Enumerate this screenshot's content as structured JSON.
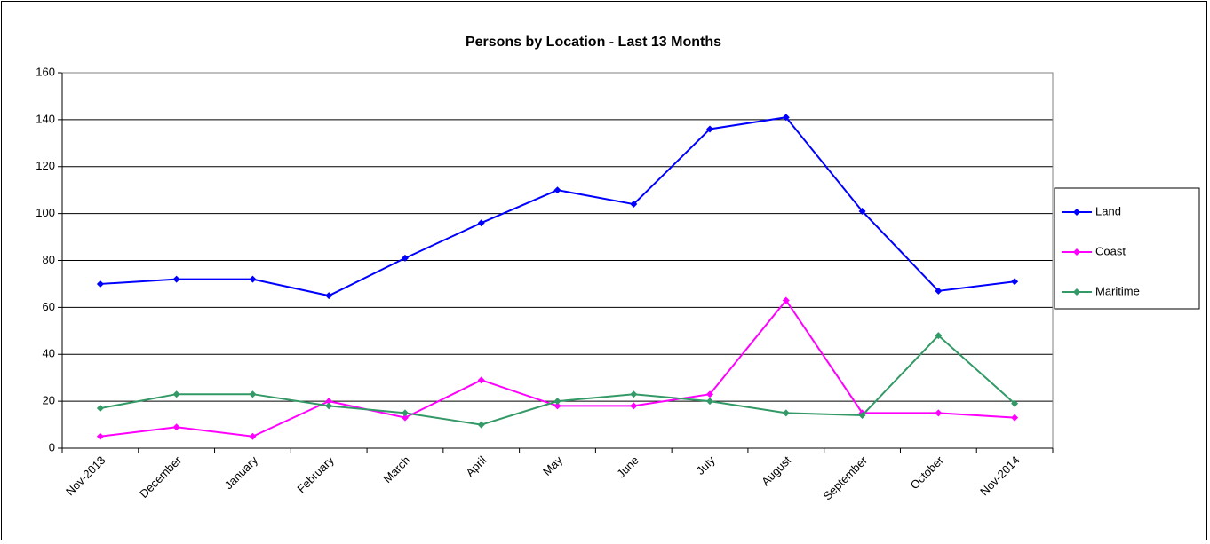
{
  "chart_data": {
    "type": "line",
    "title": "Persons by Location - Last 13 Months",
    "categories": [
      "Nov-2013",
      "December",
      "January",
      "February",
      "March",
      "April",
      "May",
      "June",
      "July",
      "August",
      "September",
      "October",
      "Nov-2014"
    ],
    "series": [
      {
        "name": "Land",
        "color": "#0000ff",
        "values": [
          70,
          72,
          72,
          65,
          81,
          96,
          110,
          104,
          136,
          141,
          101,
          67,
          71
        ]
      },
      {
        "name": "Coast",
        "color": "#ff00ff",
        "values": [
          5,
          9,
          5,
          20,
          13,
          29,
          18,
          18,
          23,
          63,
          15,
          15,
          13
        ]
      },
      {
        "name": "Maritime",
        "color": "#339966",
        "values": [
          17,
          23,
          23,
          18,
          15,
          10,
          20,
          23,
          20,
          15,
          14,
          48,
          19
        ]
      }
    ],
    "ylim": [
      0,
      160
    ],
    "yticks": [
      0,
      20,
      40,
      60,
      80,
      100,
      120,
      140,
      160
    ],
    "grid": true,
    "legend": "right"
  }
}
